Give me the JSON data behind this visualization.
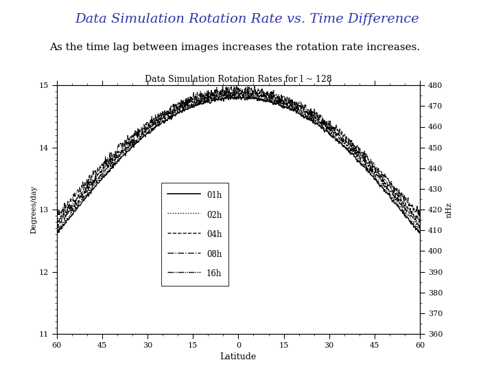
{
  "title_main": "Data Simulation Rotation Rate vs. Time Difference",
  "subtitle": "As the time lag between images increases the rotation rate increases.",
  "plot_title": "Data Simulation Rotation Rates for l ~ 128",
  "xlabel": "Latitude",
  "ylabel_left": "Degrees/day",
  "ylabel_right": "nHz",
  "xlim": [
    -60,
    60
  ],
  "ylim_left": [
    11,
    15
  ],
  "ylim_right": [
    360,
    480
  ],
  "xticks": [
    -60,
    -45,
    -30,
    -15,
    0,
    15,
    30,
    45,
    60
  ],
  "xticklabels": [
    "60",
    "45",
    "30",
    "15",
    "0",
    "15",
    "30",
    "45",
    "60"
  ],
  "yticks_left": [
    11,
    12,
    13,
    14,
    15
  ],
  "yticks_right": [
    360,
    370,
    380,
    390,
    400,
    410,
    420,
    430,
    440,
    450,
    460,
    470,
    480
  ],
  "legend_labels": [
    "01h",
    "02h",
    "04h",
    "08h",
    "16h"
  ],
  "title_color": "#3333aa",
  "subtitle_color": "#000000",
  "background_color": "#ffffff",
  "title_fontsize": 14,
  "subtitle_fontsize": 11,
  "plot_title_fontsize": 9,
  "num_points": 800
}
